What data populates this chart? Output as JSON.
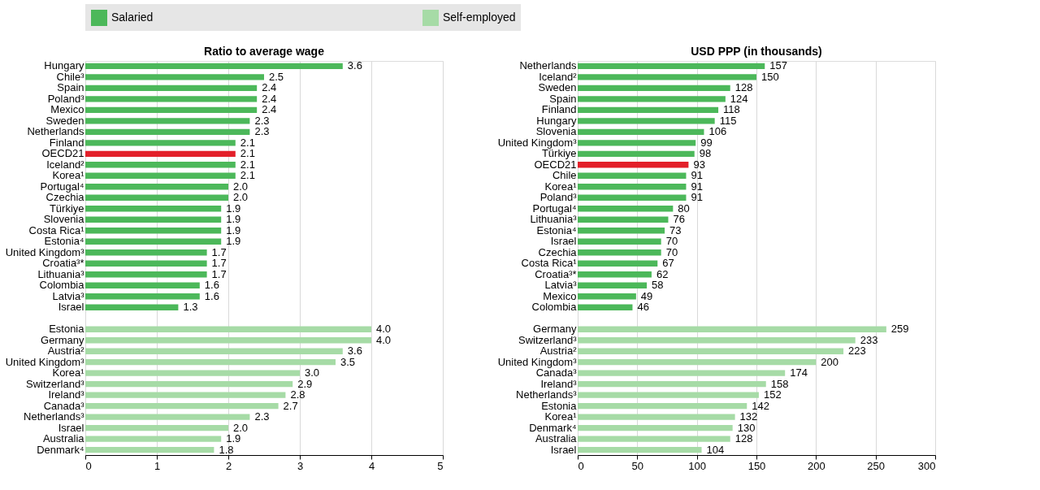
{
  "chart_data": [
    {
      "type": "bar",
      "orientation": "horizontal",
      "title": "Ratio to average wage",
      "categories": [
        "Hungary",
        "Chile³",
        "Spain",
        "Poland³",
        "Mexico",
        "Sweden",
        "Netherlands",
        "Finland",
        "OECD21",
        "Iceland²",
        "Korea¹",
        "Portugal⁴",
        "Czechia",
        "Türkiye",
        "Slovenia",
        "Costa Rica¹",
        "Estonia⁴",
        "United Kingdom³",
        "Croatia³*",
        "Lithuania³",
        "Colombia",
        "Latvia³",
        "Israel",
        null,
        "Estonia",
        "Germany",
        "Austria²",
        "United Kingdom³",
        "Korea¹",
        "Switzerland³",
        "Ireland³",
        "Canada³",
        "Netherlands³",
        "Israel",
        "Australia",
        "Denmark⁴"
      ],
      "series": [
        {
          "name": "Salaried",
          "color": "#4cb85a",
          "values": [
            3.6,
            2.5,
            2.4,
            2.4,
            2.4,
            2.3,
            2.3,
            2.1,
            null,
            2.1,
            2.1,
            2.0,
            2.0,
            1.9,
            1.9,
            1.9,
            1.9,
            1.7,
            1.7,
            1.7,
            1.6,
            1.6,
            1.3,
            null,
            null,
            null,
            null,
            null,
            null,
            null,
            null,
            null,
            null,
            null,
            null,
            null
          ],
          "value_labels": [
            "3.6",
            "2.5",
            "2.4",
            "2.4",
            "2.4",
            "2.3",
            "2.3",
            "2.1",
            null,
            "2.1",
            "2.1",
            "2.0",
            "2.0",
            "1.9",
            "1.9",
            "1.9",
            "1.9",
            "1.7",
            "1.7",
            "1.7",
            "1.6",
            "1.6",
            "1.3",
            null,
            null,
            null,
            null,
            null,
            null,
            null,
            null,
            null,
            null,
            null,
            null,
            null
          ]
        },
        {
          "color": "#e3202a",
          "values": [
            null,
            null,
            null,
            null,
            null,
            null,
            null,
            null,
            2.1,
            null,
            null,
            null,
            null,
            null,
            null,
            null,
            null,
            null,
            null,
            null,
            null,
            null,
            null,
            null,
            null,
            null,
            null,
            null,
            null,
            null,
            null,
            null,
            null,
            null,
            null,
            null
          ],
          "value_labels": [
            null,
            null,
            null,
            null,
            null,
            null,
            null,
            null,
            "2.1",
            null,
            null,
            null,
            null,
            null,
            null,
            null,
            null,
            null,
            null,
            null,
            null,
            null,
            null,
            null,
            null,
            null,
            null,
            null,
            null,
            null,
            null,
            null,
            null,
            null,
            null,
            null
          ]
        },
        {
          "name": "Self-employed",
          "color": "#a6dba6",
          "values": [
            null,
            null,
            null,
            null,
            null,
            null,
            null,
            null,
            null,
            null,
            null,
            null,
            null,
            null,
            null,
            null,
            null,
            null,
            null,
            null,
            null,
            null,
            null,
            null,
            4.0,
            4.0,
            3.6,
            3.5,
            3.0,
            2.9,
            2.8,
            2.7,
            2.3,
            2.0,
            1.9,
            1.8
          ],
          "value_labels": [
            null,
            null,
            null,
            null,
            null,
            null,
            null,
            null,
            null,
            null,
            null,
            null,
            null,
            null,
            null,
            null,
            null,
            null,
            null,
            null,
            null,
            null,
            null,
            null,
            "4.0",
            "4.0",
            "3.6",
            "3.5",
            "3.0",
            "2.9",
            "2.8",
            "2.7",
            "2.3",
            "2.0",
            "1.9",
            "1.8"
          ]
        }
      ],
      "xlim": [
        0,
        5
      ],
      "xticks": [
        0,
        1,
        2,
        3,
        4,
        5
      ],
      "grid": "x",
      "legend": "top"
    },
    {
      "type": "bar",
      "orientation": "horizontal",
      "title": "USD PPP (in thousands)",
      "categories": [
        "Netherlands",
        "Iceland²",
        "Sweden",
        "Spain",
        "Finland",
        "Hungary",
        "Slovenia",
        "United Kingdom³",
        "Türkiye",
        "OECD21",
        "Chile",
        "Korea¹",
        "Poland³",
        "Portugal⁴",
        "Lithuania³",
        "Estonia⁴",
        "Israel",
        "Czechia",
        "Costa Rica¹",
        "Croatia³*",
        "Latvia³",
        "Mexico",
        "Colombia",
        null,
        "Germany",
        "Switzerland³",
        "Austria²",
        "United Kingdom³",
        "Canada³",
        "Ireland³",
        "Netherlands³",
        "Estonia",
        "Korea¹",
        "Denmark⁴",
        "Australia",
        "Israel"
      ],
      "series": [
        {
          "name": "Salaried",
          "color": "#4cb85a",
          "values": [
            157,
            150,
            128,
            124,
            118,
            115,
            106,
            99,
            98,
            null,
            91,
            91,
            91,
            80,
            76,
            73,
            70,
            70,
            67,
            62,
            58,
            49,
            46,
            null,
            null,
            null,
            null,
            null,
            null,
            null,
            null,
            null,
            null,
            null,
            null,
            null
          ]
        },
        {
          "color": "#e3202a",
          "values": [
            null,
            null,
            null,
            null,
            null,
            null,
            null,
            null,
            null,
            93,
            null,
            null,
            null,
            null,
            null,
            null,
            null,
            null,
            null,
            null,
            null,
            null,
            null,
            null,
            null,
            null,
            null,
            null,
            null,
            null,
            null,
            null,
            null,
            null,
            null,
            null
          ]
        },
        {
          "name": "Self-employed",
          "color": "#a6dba6",
          "values": [
            null,
            null,
            null,
            null,
            null,
            null,
            null,
            null,
            null,
            null,
            null,
            null,
            null,
            null,
            null,
            null,
            null,
            null,
            null,
            null,
            null,
            null,
            null,
            null,
            259,
            233,
            223,
            200,
            174,
            158,
            152,
            142,
            132,
            130,
            128,
            104
          ]
        }
      ],
      "xlim": [
        0,
        300
      ],
      "xticks": [
        0,
        50,
        100,
        150,
        200,
        250,
        300
      ],
      "grid": "x",
      "data_labels": true
    }
  ]
}
